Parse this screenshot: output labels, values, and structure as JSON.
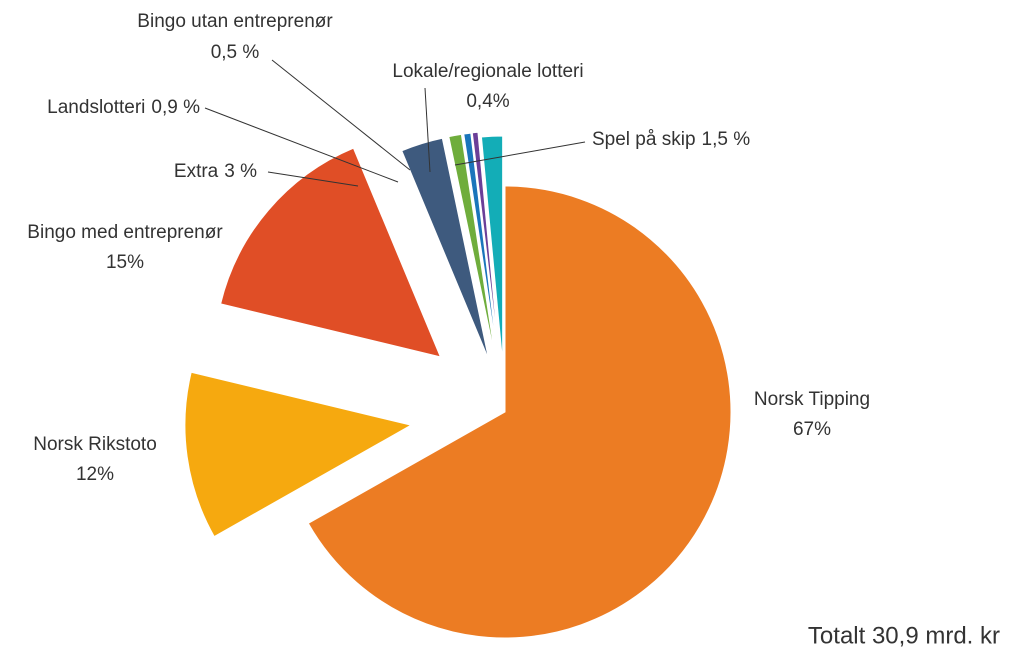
{
  "chart_data": {
    "type": "pie",
    "categories": [
      "Norsk Tipping",
      "Norsk Rikstoto",
      "Bingo med entreprenør",
      "Extra",
      "Landslotteri",
      "Bingo utan entreprenør",
      "Lokale/regionale lotteri",
      "Spel på skip"
    ],
    "values": [
      67,
      12,
      15,
      3,
      0.9,
      0.5,
      0.4,
      1.5
    ],
    "value_labels": [
      "67%",
      "12%",
      "15%",
      "3 %",
      "0,9 %",
      "0,5 %",
      "0,4%",
      "1,5 %"
    ],
    "colors": [
      "#ec7c23",
      "#f6a90f",
      "#e04e26",
      "#3e5a7e",
      "#6fad3c",
      "#1a75bb",
      "#6b3f98",
      "#13adb7"
    ],
    "annotation": "Totalt 30,9 mrd. kr"
  }
}
